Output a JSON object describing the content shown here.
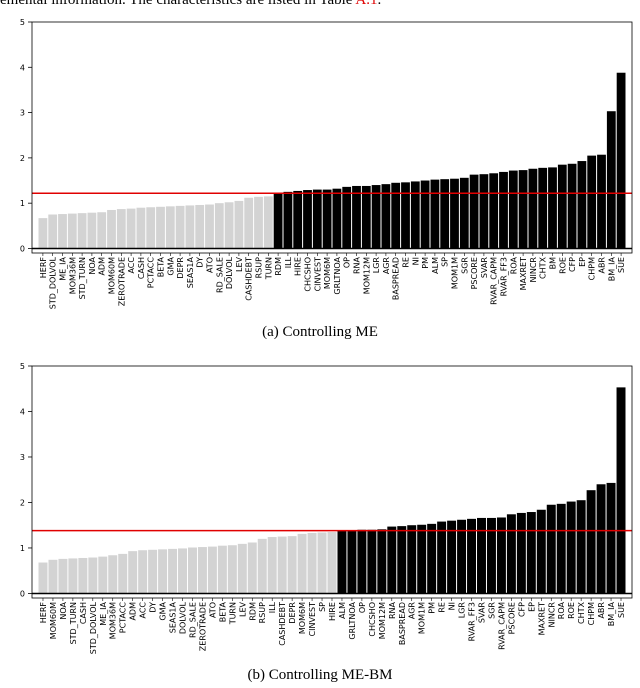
{
  "top_text": {
    "before": "emental information. The characteristics are listed in Table ",
    "ref": "A.1",
    "after": "."
  },
  "chart_data": [
    {
      "type": "bar",
      "caption": "(a) Controlling ME",
      "categories": [
        "HERF",
        "STD_DOLVOL",
        "ME_IA",
        "MOM36M",
        "STD_TURN",
        "NOA",
        "ADM",
        "MOM60M",
        "ZEROTRADE",
        "ACC",
        "CASH",
        "PCTACC",
        "BETA",
        "GMA",
        "DEPR",
        "SEAS1A",
        "DY",
        "ATO",
        "RD_SALE",
        "DOLVOL",
        "LEV",
        "CASHDEBT",
        "RSUP",
        "TURN",
        "RDM",
        "ILL",
        "HIRE",
        "CHCSHO",
        "CINVEST",
        "MOM6M",
        "GRLTNOA",
        "OP",
        "RNA",
        "MOM12M",
        "LGR",
        "AGR",
        "BASPREAD",
        "RE",
        "NI",
        "PM",
        "ALM",
        "SP",
        "MOM1M",
        "SGR",
        "PSCORE",
        "SVAR",
        "RVAR_CAPM",
        "RVAR_FF3",
        "ROA",
        "MAXRET",
        "NINCR",
        "CHTX",
        "BM",
        "ROE",
        "CFP",
        "EP",
        "CHPM",
        "ABR",
        "BM_IA",
        "SUE"
      ],
      "values": [
        0.67,
        0.75,
        0.76,
        0.77,
        0.78,
        0.79,
        0.8,
        0.85,
        0.87,
        0.88,
        0.9,
        0.91,
        0.92,
        0.93,
        0.94,
        0.95,
        0.96,
        0.97,
        1.0,
        1.02,
        1.05,
        1.12,
        1.14,
        1.15,
        1.22,
        1.25,
        1.27,
        1.29,
        1.3,
        1.3,
        1.32,
        1.36,
        1.38,
        1.38,
        1.4,
        1.42,
        1.45,
        1.46,
        1.48,
        1.5,
        1.52,
        1.53,
        1.54,
        1.56,
        1.63,
        1.64,
        1.66,
        1.69,
        1.72,
        1.73,
        1.76,
        1.78,
        1.79,
        1.85,
        1.87,
        1.93,
        2.05,
        2.07,
        3.03,
        3.88
      ],
      "color_below": "#d3d3d3",
      "color_above": "#000000",
      "threshold": {
        "value": 1.22,
        "color": "#e00000"
      },
      "ylim": [
        -0.1,
        5
      ],
      "yticks": [
        0,
        1,
        2,
        3,
        4,
        5
      ]
    },
    {
      "type": "bar",
      "caption": "(b) Controlling ME-BM",
      "categories": [
        "HERF",
        "MOM60M",
        "NOA",
        "STD_TURN",
        "CASH",
        "STD_DOLVOL",
        "ME_IA",
        "MOM36M",
        "PCTACC",
        "ADM",
        "ACC",
        "DY",
        "GMA",
        "SEAS1A",
        "DOLVOL",
        "RD_SALE",
        "ZEROTRADE",
        "ATO",
        "BETA",
        "TURN",
        "LEV",
        "RDM",
        "RSUP",
        "ILL",
        "CASHDEBT",
        "DEPR",
        "MOM6M",
        "CINVEST",
        "SP",
        "HIRE",
        "ALM",
        "GRLTNOA",
        "OP",
        "CHCSHO",
        "MOM12M",
        "RNA",
        "BASPREAD",
        "AGR",
        "MOM1M",
        "PM",
        "RE",
        "NI",
        "LGR",
        "RVAR_FF3",
        "SVAR",
        "SGR",
        "RVAR_CAPM",
        "PSCORE",
        "CFP",
        "EP",
        "MAXRET",
        "NINCR",
        "ROA",
        "ROE",
        "CHTX",
        "CHPM",
        "ABR",
        "BM_IA",
        "SUE"
      ],
      "values": [
        0.68,
        0.74,
        0.76,
        0.77,
        0.78,
        0.79,
        0.81,
        0.84,
        0.87,
        0.93,
        0.95,
        0.96,
        0.97,
        0.98,
        0.99,
        1.01,
        1.02,
        1.03,
        1.05,
        1.06,
        1.09,
        1.12,
        1.2,
        1.24,
        1.25,
        1.26,
        1.31,
        1.33,
        1.34,
        1.35,
        1.38,
        1.39,
        1.4,
        1.4,
        1.41,
        1.47,
        1.48,
        1.5,
        1.51,
        1.53,
        1.58,
        1.6,
        1.62,
        1.64,
        1.66,
        1.66,
        1.67,
        1.74,
        1.77,
        1.79,
        1.84,
        1.95,
        1.97,
        2.02,
        2.05,
        2.27,
        2.4,
        2.43,
        4.53
      ],
      "color_below": "#d3d3d3",
      "color_above": "#000000",
      "threshold": {
        "value": 1.38,
        "color": "#e00000"
      },
      "ylim": [
        -0.1,
        5
      ],
      "yticks": [
        0,
        1,
        2,
        3,
        4,
        5
      ]
    }
  ]
}
